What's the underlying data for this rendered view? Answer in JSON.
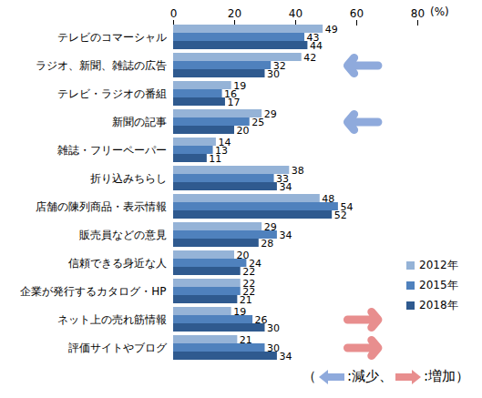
{
  "chart_data": {
    "type": "bar",
    "orientation": "horizontal",
    "categories": [
      "テレビのコマーシャル",
      "ラジオ、新聞、雑誌の広告",
      "テレビ・ラジオの番組",
      "新聞の記事",
      "雑誌・フリーペーパー",
      "折り込みちらし",
      "店舗の陳列商品・表示情報",
      "販売員などの意見",
      "信頼できる身近な人",
      "企業が発行するカタログ・HP",
      "ネット上の売れ筋情報",
      "評価サイトやブログ"
    ],
    "series": [
      {
        "name": "2012年",
        "color": "#95b3d7",
        "values": [
          49,
          42,
          19,
          29,
          14,
          38,
          48,
          29,
          20,
          22,
          19,
          21
        ]
      },
      {
        "name": "2015年",
        "color": "#4f81bd",
        "values": [
          43,
          32,
          16,
          25,
          13,
          33,
          54,
          34,
          24,
          22,
          26,
          30
        ]
      },
      {
        "name": "2018年",
        "color": "#2f5a8f",
        "values": [
          44,
          30,
          17,
          20,
          11,
          34,
          52,
          28,
          22,
          21,
          30,
          34
        ]
      }
    ],
    "xlim": [
      0,
      80
    ],
    "xticks": [
      0,
      20,
      40,
      60,
      80
    ],
    "xlabel": "(%)",
    "data_labels": true,
    "grid": false,
    "legend": "lower right",
    "annotations": {
      "caption": {
        "open": "（",
        "separator": "、",
        "close": "）"
      },
      "arrows": [
        {
          "label": ":減少",
          "direction": "left",
          "color": "#8faadc",
          "categories": [
            "ラジオ、新聞、雑誌の広告",
            "新聞の記事"
          ]
        },
        {
          "label": ":増加",
          "direction": "right",
          "color": "#e88e8e",
          "categories": [
            "ネット上の売れ筋情報",
            "評価サイトやブログ"
          ]
        }
      ]
    }
  }
}
